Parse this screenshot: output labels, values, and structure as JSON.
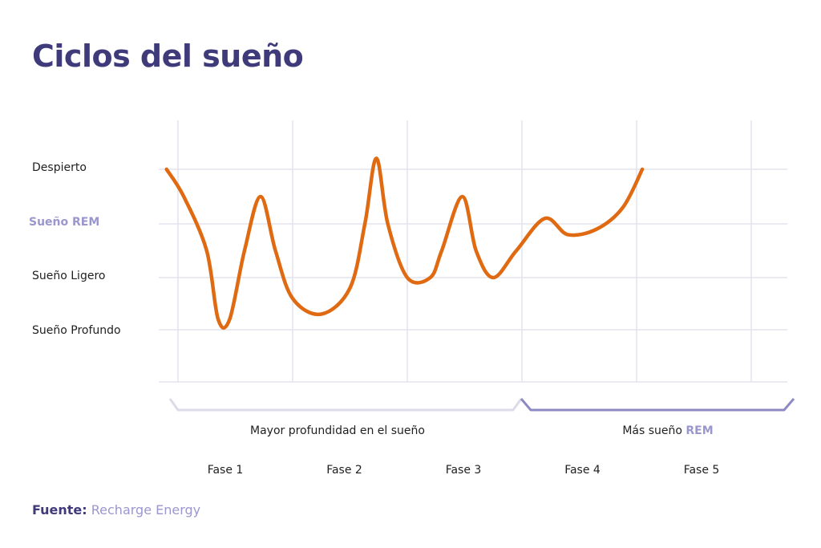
{
  "title": "Ciclos del sueño",
  "source": {
    "label": "Fuente:",
    "value": "Recharge Energy"
  },
  "colors": {
    "orange": "#e06a12",
    "rem": "#9a97cf",
    "title": "#3f3b7a",
    "grid": "#e3e3ef",
    "brace_light": "#dcdbe9",
    "brace_dark": "#8c89c4"
  },
  "chart_data": {
    "type": "line",
    "title": "Ciclos del sueño",
    "levels": [
      "Despierto",
      "Sueño REM",
      "Sueño Ligero",
      "Sueño Profundo"
    ],
    "groups": [
      {
        "text": "Mayor profundidad en el sueño",
        "accent": "",
        "phases": [
          "Fase 1",
          "Fase 2",
          "Fase 3"
        ]
      },
      {
        "text": "Más sueño ",
        "accent": "REM",
        "phases": [
          "Fase 4",
          "Fase 5"
        ]
      }
    ],
    "phases": [
      "Fase 1",
      "Fase 2",
      "Fase 3",
      "Fase 4",
      "Fase 5"
    ],
    "grid": true,
    "series": [
      {
        "description": "stage over night (0 = Sueño Profundo, 1 = Sueño Ligero, 2 = Sueño REM, 3 = Despierto); x in phases",
        "points": [
          [
            -0.1,
            3.0
          ],
          [
            0.05,
            2.5
          ],
          [
            0.25,
            1.5
          ],
          [
            0.35,
            0.2
          ],
          [
            0.45,
            0.2
          ],
          [
            0.58,
            1.5
          ],
          [
            0.72,
            2.5
          ],
          [
            0.85,
            1.5
          ],
          [
            1.0,
            0.6
          ],
          [
            1.25,
            0.3
          ],
          [
            1.5,
            0.8
          ],
          [
            1.63,
            2.0
          ],
          [
            1.73,
            3.2
          ],
          [
            1.83,
            2.0
          ],
          [
            2.0,
            1.0
          ],
          [
            2.2,
            1.0
          ],
          [
            2.3,
            1.5
          ],
          [
            2.48,
            2.5
          ],
          [
            2.6,
            1.5
          ],
          [
            2.75,
            1.0
          ],
          [
            2.95,
            1.5
          ],
          [
            3.2,
            2.1
          ],
          [
            3.4,
            1.8
          ],
          [
            3.65,
            1.9
          ],
          [
            3.88,
            2.3
          ],
          [
            4.05,
            3.0
          ]
        ]
      }
    ]
  }
}
